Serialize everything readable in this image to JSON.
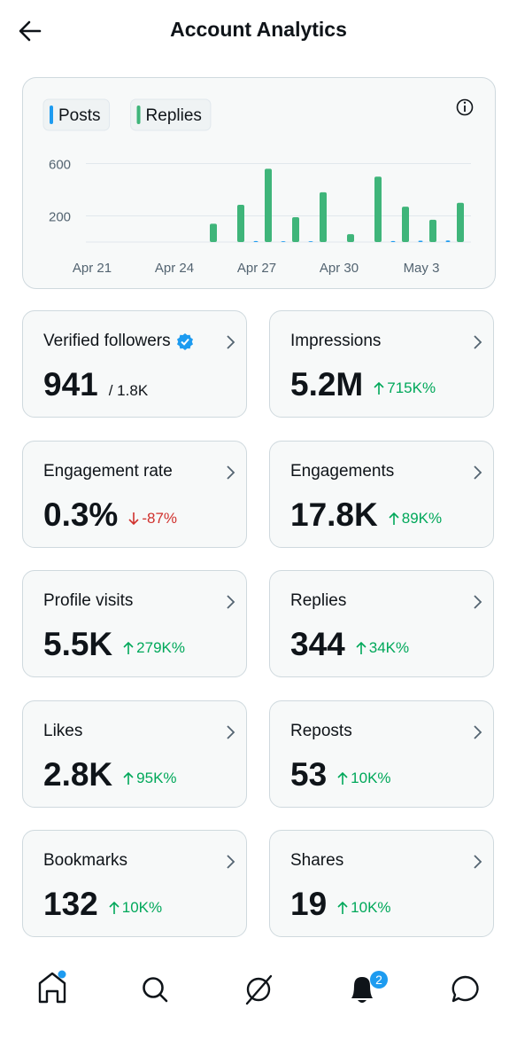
{
  "header": {
    "title": "Account Analytics"
  },
  "chart": {
    "type": "bar",
    "categories": [
      "Apr 21",
      null,
      null,
      "Apr 24",
      null,
      null,
      "Apr 27",
      null,
      null,
      "Apr 30",
      null,
      null,
      "May 3",
      null
    ],
    "series": [
      {
        "name": "Posts",
        "color": "#1d9bf0",
        "values": [
          0,
          0,
          0,
          0,
          0,
          0,
          8,
          6,
          6,
          0,
          0,
          8,
          10,
          12
        ]
      },
      {
        "name": "Replies",
        "color": "#3fb57a",
        "values": [
          0,
          0,
          0,
          0,
          140,
          285,
          560,
          190,
          380,
          60,
          500,
          270,
          170,
          300
        ]
      }
    ],
    "ylim": [
      0,
      620
    ],
    "yticks": [
      200,
      600
    ],
    "grid": true
  },
  "cards": [
    {
      "label": "Verified followers",
      "value": "941",
      "total": "/ 1.8K",
      "verified": true
    },
    {
      "label": "Impressions",
      "value": "5.2M",
      "change": "715K%",
      "direction": "up"
    },
    {
      "label": "Engagement rate",
      "value": "0.3%",
      "change": "-87%",
      "direction": "down"
    },
    {
      "label": "Engagements",
      "value": "17.8K",
      "change": "89K%",
      "direction": "up"
    },
    {
      "label": "Profile visits",
      "value": "5.5K",
      "change": "279K%",
      "direction": "up"
    },
    {
      "label": "Replies",
      "value": "344",
      "change": "34K%",
      "direction": "up"
    },
    {
      "label": "Likes",
      "value": "2.8K",
      "change": "95K%",
      "direction": "up"
    },
    {
      "label": "Reposts",
      "value": "53",
      "change": "10K%",
      "direction": "up"
    },
    {
      "label": "Bookmarks",
      "value": "132",
      "change": "10K%",
      "direction": "up"
    },
    {
      "label": "Shares",
      "value": "19",
      "change": "10K%",
      "direction": "up"
    }
  ],
  "nav": {
    "notification_count": "2"
  }
}
